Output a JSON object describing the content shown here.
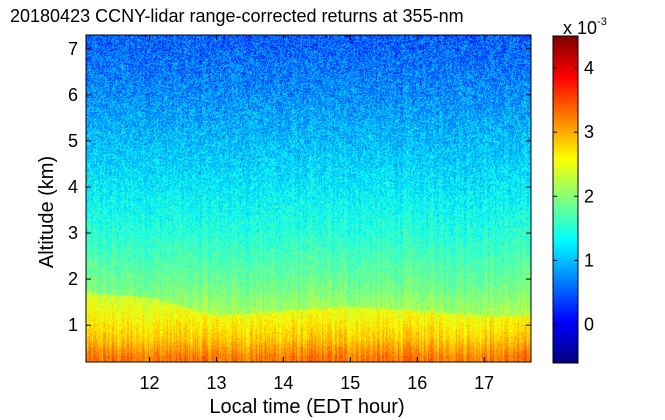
{
  "chart_data": {
    "type": "heatmap",
    "title": "20180423 CCNY-lidar range-corrected returns at 355-nm",
    "xlabel": "Local time (EDT hour)",
    "ylabel": "Altitude (km)",
    "x_range": [
      11.05,
      17.7
    ],
    "y_range": [
      0.2,
      7.3
    ],
    "x_ticks": [
      "12",
      "13",
      "14",
      "15",
      "16",
      "17"
    ],
    "y_ticks": [
      "1",
      "2",
      "3",
      "4",
      "5",
      "6",
      "7"
    ],
    "colorbar": {
      "range": [
        -0.6,
        4.5
      ],
      "multiplier": "x 10",
      "exponent": "-3",
      "ticks": [
        "0",
        "1",
        "2",
        "3",
        "4"
      ]
    },
    "profile": [
      {
        "altitude_km": 0.3,
        "value": 2.9
      },
      {
        "altitude_km": 0.7,
        "value": 2.5
      },
      {
        "altitude_km": 1.2,
        "value": 2.2
      },
      {
        "altitude_km": 1.8,
        "value": 1.9
      },
      {
        "altitude_km": 3.0,
        "value": 1.5
      },
      {
        "altitude_km": 4.5,
        "value": 1.1
      },
      {
        "altitude_km": 6.0,
        "value": 0.75
      },
      {
        "altitude_km": 7.3,
        "value": 0.5
      }
    ],
    "boundary_layer_top_km": [
      {
        "time": 11.05,
        "value": 1.7
      },
      {
        "time": 12.0,
        "value": 1.6
      },
      {
        "time": 13.0,
        "value": 1.2
      },
      {
        "time": 14.0,
        "value": 1.3
      },
      {
        "time": 15.0,
        "value": 1.4
      },
      {
        "time": 16.0,
        "value": 1.3
      },
      {
        "time": 17.0,
        "value": 1.2
      },
      {
        "time": 17.7,
        "value": 1.2
      }
    ]
  }
}
